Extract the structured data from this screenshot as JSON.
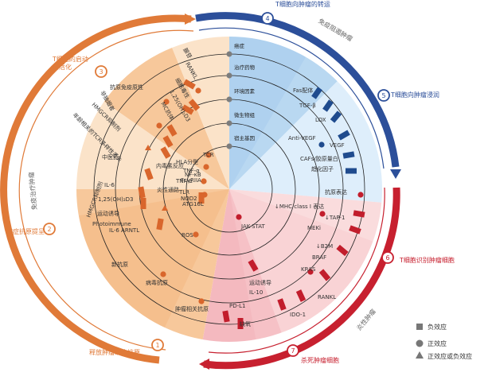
{
  "stages": [
    {
      "num": "1",
      "label": "释放肿瘤细胞抗原",
      "color": "#e07a38"
    },
    {
      "num": "2",
      "label": "癌症抗原提呈",
      "color": "#e07a38"
    },
    {
      "num": "3",
      "label": "T细胞的启动和活化",
      "color": "#e07a38"
    },
    {
      "num": "4",
      "label": "T细胞向肿瘤的转运",
      "color": "#2c4f9a"
    },
    {
      "num": "5",
      "label": "T细胞向肿瘤浸润",
      "color": "#2c4f9a"
    },
    {
      "num": "6",
      "label": "T细胞识别肿瘤细胞",
      "color": "#c7202f"
    },
    {
      "num": "7",
      "label": "杀死肿瘤细胞",
      "color": "#c7202f"
    }
  ],
  "phases": [
    {
      "label": "免疫治疗肿瘤"
    },
    {
      "label": "免疫阻遏肿瘤"
    },
    {
      "label": "炎性肿瘤"
    }
  ],
  "rings": [
    "癌症",
    "治疗药物",
    "环境因素",
    "微生物组",
    "宿主基因"
  ],
  "factors": [
    "Fas配体",
    "TGF-β",
    "LOX",
    "Anti-VEGF",
    "VEGF",
    "CAFs/胶原量白",
    "趋化因子",
    "抗原表达",
    "↓MHC class I 表达",
    "↓TAP-1",
    "MEKi",
    "↓B2M",
    "BRAF",
    "KRAS",
    "RANKL",
    "IDO-1",
    "运动诱导",
    "IL-10",
    "缺氧",
    "PD-L1",
    "肿瘤相关抗原",
    "病毒抗原",
    "新抗原",
    "ROS",
    "JAK-STAT",
    "HMGCR抑制剂",
    "Photoimmune",
    "IL-6 ARNTL",
    "1,25(OH)₂D3",
    "运动诱导",
    "IL-6",
    "中医药",
    "内毒素反应",
    "炎性通路",
    "TLR",
    "NOD2",
    "ATG16L",
    "TNF-α",
    "HLA分型",
    "TNF-α",
    "NF-κB",
    "FcγRIIA",
    "TCR",
    "抗原免疫原性",
    "年龄相关的TCR多样性丢失",
    "HMGCR抑制剂",
    "非抽烟者",
    "MC抗体",
    "1,25(OH)₂D3",
    "细胞毒性",
    "RANKL",
    "腺苷"
  ],
  "legend": {
    "negative": "负效应",
    "positive": "正效应",
    "both": "正效应或负效应"
  },
  "colors": {
    "orange_dark": "#e07a38",
    "orange_mid": "#f7c89b",
    "orange_light": "#fbe3c9",
    "blue_dark": "#2c4f9a",
    "blue_mid": "#b9d8f1",
    "blue_light": "#deeefb",
    "red_dark": "#c7202f",
    "red_mid": "#f4b9bf",
    "red_light": "#fadcdd",
    "marker_orange": "#d9662c",
    "marker_blue": "#1f4b8e",
    "marker_red": "#c21d2c",
    "gray": "#8a8a8a"
  }
}
